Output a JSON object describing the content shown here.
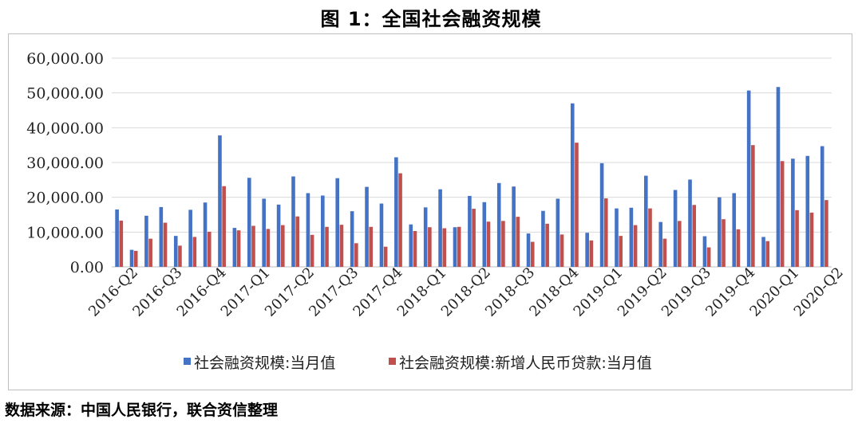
{
  "title": "图 1：全国社会融资规模",
  "source": "数据来源：中国人民银行，联合资信整理",
  "colors": {
    "series1": "#4472C4",
    "series2": "#C0504D",
    "grid": "#d9d9d9",
    "axis": "#bfbfbf"
  },
  "chart_data": {
    "type": "bar",
    "ylim": [
      0,
      60000
    ],
    "yticks": [
      "0.00",
      "10,000.00",
      "20,000.00",
      "30,000.00",
      "40,000.00",
      "50,000.00",
      "60,000.00"
    ],
    "grid": true,
    "legend_position": "bottom",
    "tick_labels": [
      "2016-Q2",
      "2016-Q3",
      "2016-Q4",
      "2017-Q1",
      "2017-Q2",
      "2017-Q3",
      "2017-Q4",
      "2018-Q1",
      "2018-Q2",
      "2018-Q3",
      "2018-Q4",
      "2019-Q1",
      "2019-Q2",
      "2019-Q3",
      "2019-Q4",
      "2020-Q1",
      "2020-Q2"
    ],
    "series": [
      {
        "name": "社会融资规模:当月值",
        "values": [
          16500,
          4900,
          14700,
          17200,
          8900,
          16400,
          18500,
          37800,
          11200,
          25600,
          19600,
          17900,
          26000,
          21200,
          20500,
          25500,
          16000,
          23000,
          18200,
          31500,
          12200,
          17100,
          22300,
          11400,
          20400,
          18600,
          24100,
          23100,
          9600,
          16100,
          19600,
          47000,
          9800,
          29800,
          16800,
          17000,
          26200,
          12900,
          22100,
          25100,
          8800,
          20000,
          21200,
          50700,
          8600,
          51700,
          31100,
          31900,
          34700
        ]
      },
      {
        "name": "社会融资规模:新增人民币贷款:当月值",
        "values": [
          13300,
          4600,
          8100,
          12700,
          6100,
          8600,
          10100,
          23200,
          10500,
          11800,
          10900,
          12000,
          14500,
          9200,
          11500,
          12100,
          6800,
          11500,
          5800,
          26900,
          10300,
          11400,
          11100,
          11500,
          16700,
          13000,
          13200,
          14400,
          7200,
          12400,
          9300,
          35700,
          7600,
          19700,
          8900,
          12000,
          16800,
          8100,
          13200,
          17800,
          5600,
          13700,
          10800,
          35000,
          7400,
          30400,
          16300,
          15600,
          19200
        ]
      }
    ]
  }
}
